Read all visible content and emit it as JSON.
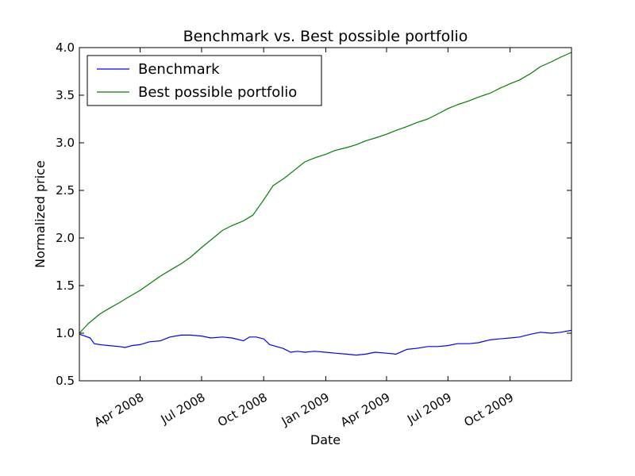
{
  "chart_data": {
    "type": "line",
    "title": "Benchmark vs. Best possible portfolio",
    "xlabel": "Date",
    "ylabel": "Normalized price",
    "xlim": [
      "2008-01-02",
      "2009-12-31"
    ],
    "ylim": [
      0.5,
      4.0
    ],
    "grid": false,
    "legend_position": "top-left",
    "x_ticks": [
      {
        "date": "2008-04-01",
        "label": "Apr 2008"
      },
      {
        "date": "2008-07-01",
        "label": "Jul 2008"
      },
      {
        "date": "2008-10-01",
        "label": "Oct 2008"
      },
      {
        "date": "2009-01-01",
        "label": "Jan 2009"
      },
      {
        "date": "2009-04-01",
        "label": "Apr 2009"
      },
      {
        "date": "2009-07-01",
        "label": "Jul 2009"
      },
      {
        "date": "2009-10-01",
        "label": "Oct 2009"
      }
    ],
    "y_ticks": [
      {
        "value": 0.5,
        "label": "0.5"
      },
      {
        "value": 1.0,
        "label": "1.0"
      },
      {
        "value": 1.5,
        "label": "1.5"
      },
      {
        "value": 2.0,
        "label": "2.0"
      },
      {
        "value": 2.5,
        "label": "2.5"
      },
      {
        "value": 3.0,
        "label": "3.0"
      },
      {
        "value": 3.5,
        "label": "3.5"
      },
      {
        "value": 4.0,
        "label": "4.0"
      }
    ],
    "series": [
      {
        "name": "Benchmark",
        "color": "#0000ff",
        "points": [
          [
            "2008-01-02",
            0.99
          ],
          [
            "2008-01-10",
            0.97
          ],
          [
            "2008-01-18",
            0.95
          ],
          [
            "2008-01-24",
            0.89
          ],
          [
            "2008-02-01",
            0.88
          ],
          [
            "2008-02-15",
            0.87
          ],
          [
            "2008-03-01",
            0.86
          ],
          [
            "2008-03-10",
            0.85
          ],
          [
            "2008-03-20",
            0.87
          ],
          [
            "2008-04-01",
            0.88
          ],
          [
            "2008-04-15",
            0.91
          ],
          [
            "2008-05-01",
            0.92
          ],
          [
            "2008-05-15",
            0.96
          ],
          [
            "2008-06-01",
            0.98
          ],
          [
            "2008-06-15",
            0.98
          ],
          [
            "2008-07-01",
            0.97
          ],
          [
            "2008-07-15",
            0.95
          ],
          [
            "2008-08-01",
            0.96
          ],
          [
            "2008-08-15",
            0.95
          ],
          [
            "2008-09-01",
            0.92
          ],
          [
            "2008-09-10",
            0.96
          ],
          [
            "2008-09-20",
            0.96
          ],
          [
            "2008-10-01",
            0.94
          ],
          [
            "2008-10-10",
            0.88
          ],
          [
            "2008-10-20",
            0.86
          ],
          [
            "2008-10-30",
            0.84
          ],
          [
            "2008-11-10",
            0.8
          ],
          [
            "2008-11-20",
            0.81
          ],
          [
            "2008-12-01",
            0.8
          ],
          [
            "2008-12-15",
            0.81
          ],
          [
            "2009-01-01",
            0.8
          ],
          [
            "2009-01-15",
            0.79
          ],
          [
            "2009-02-01",
            0.78
          ],
          [
            "2009-02-15",
            0.77
          ],
          [
            "2009-03-01",
            0.78
          ],
          [
            "2009-03-15",
            0.8
          ],
          [
            "2009-04-01",
            0.79
          ],
          [
            "2009-04-15",
            0.78
          ],
          [
            "2009-05-01",
            0.83
          ],
          [
            "2009-05-15",
            0.84
          ],
          [
            "2009-06-01",
            0.86
          ],
          [
            "2009-06-15",
            0.86
          ],
          [
            "2009-07-01",
            0.87
          ],
          [
            "2009-07-15",
            0.89
          ],
          [
            "2009-08-01",
            0.89
          ],
          [
            "2009-08-15",
            0.9
          ],
          [
            "2009-09-01",
            0.93
          ],
          [
            "2009-09-15",
            0.94
          ],
          [
            "2009-10-01",
            0.95
          ],
          [
            "2009-10-15",
            0.96
          ],
          [
            "2009-11-01",
            0.99
          ],
          [
            "2009-11-15",
            1.01
          ],
          [
            "2009-12-01",
            1.0
          ],
          [
            "2009-12-15",
            1.01
          ],
          [
            "2009-12-31",
            1.03
          ]
        ]
      },
      {
        "name": "Best possible portfolio",
        "color": "#008000",
        "points": [
          [
            "2008-01-02",
            1.0
          ],
          [
            "2008-01-15",
            1.1
          ],
          [
            "2008-02-01",
            1.2
          ],
          [
            "2008-02-15",
            1.26
          ],
          [
            "2008-03-01",
            1.32
          ],
          [
            "2008-03-15",
            1.38
          ],
          [
            "2008-04-01",
            1.45
          ],
          [
            "2008-04-15",
            1.52
          ],
          [
            "2008-05-01",
            1.6
          ],
          [
            "2008-05-15",
            1.66
          ],
          [
            "2008-06-01",
            1.73
          ],
          [
            "2008-06-15",
            1.8
          ],
          [
            "2008-07-01",
            1.9
          ],
          [
            "2008-07-15",
            1.98
          ],
          [
            "2008-08-01",
            2.08
          ],
          [
            "2008-08-15",
            2.13
          ],
          [
            "2008-09-01",
            2.18
          ],
          [
            "2008-09-15",
            2.24
          ],
          [
            "2008-10-01",
            2.4
          ],
          [
            "2008-10-15",
            2.55
          ],
          [
            "2008-11-01",
            2.63
          ],
          [
            "2008-11-15",
            2.71
          ],
          [
            "2008-12-01",
            2.8
          ],
          [
            "2008-12-15",
            2.84
          ],
          [
            "2009-01-01",
            2.88
          ],
          [
            "2009-01-15",
            2.92
          ],
          [
            "2009-02-01",
            2.95
          ],
          [
            "2009-02-15",
            2.98
          ],
          [
            "2009-03-01",
            3.02
          ],
          [
            "2009-03-15",
            3.05
          ],
          [
            "2009-04-01",
            3.09
          ],
          [
            "2009-04-15",
            3.13
          ],
          [
            "2009-05-01",
            3.17
          ],
          [
            "2009-05-15",
            3.21
          ],
          [
            "2009-06-01",
            3.25
          ],
          [
            "2009-06-15",
            3.3
          ],
          [
            "2009-07-01",
            3.36
          ],
          [
            "2009-07-15",
            3.4
          ],
          [
            "2009-08-01",
            3.44
          ],
          [
            "2009-08-15",
            3.48
          ],
          [
            "2009-09-01",
            3.52
          ],
          [
            "2009-09-15",
            3.57
          ],
          [
            "2009-10-01",
            3.62
          ],
          [
            "2009-10-15",
            3.66
          ],
          [
            "2009-11-01",
            3.73
          ],
          [
            "2009-11-15",
            3.8
          ],
          [
            "2009-12-01",
            3.85
          ],
          [
            "2009-12-15",
            3.9
          ],
          [
            "2009-12-31",
            3.95
          ]
        ]
      }
    ]
  }
}
